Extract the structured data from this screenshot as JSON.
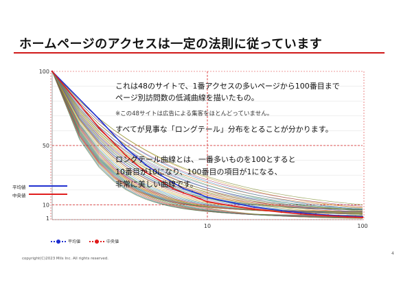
{
  "slide": {
    "title": "ホームページのアクセスは一定の法則に従っています",
    "notes": [
      "これは48のサイトで、1番アクセスの多いページから100番目まで",
      "ページ別訪問数の低減曲線を描いたもの。",
      "※この48サイトは広告による集客をほとんどっていません。",
      "すべてが見事な「ロングテール」分布をとることが分かります。",
      "ロングテール曲線とは、一番多いものを100とすると",
      "10番目が10になり、100番目の項目が1になる、",
      "非常に美しい曲線です。"
    ],
    "footer": "copyright(C)2023 Mils Inc. All rights reserved.",
    "page_number": "4"
  },
  "chart_data": {
    "type": "line",
    "x_tick_labels": [
      "10",
      "100"
    ],
    "y_tick_labels": [
      "100",
      "50",
      "10",
      "1"
    ],
    "xlim": [
      1,
      100
    ],
    "ylim": [
      0,
      100
    ],
    "reference_lines": {
      "x": [
        10
      ],
      "y": [
        50,
        10
      ]
    },
    "side_labels": [
      "平均値",
      "中央値"
    ],
    "legend": [
      {
        "name": "平均値",
        "color": "#1f2fd0"
      },
      {
        "name": "中央値",
        "color": "#e01c1c"
      }
    ],
    "series": [
      {
        "name": "平均値",
        "color": "#1f2fd0",
        "x": [
          1,
          2,
          3,
          4,
          5,
          6,
          7,
          8,
          9,
          10,
          15,
          20,
          30,
          40,
          50,
          60,
          70,
          80,
          90,
          100
        ],
        "y": [
          100,
          68,
          48,
          37,
          30,
          25,
          21,
          19,
          17,
          15,
          11,
          8.5,
          6,
          4.6,
          3.7,
          3.1,
          2.7,
          2.4,
          2.1,
          1.9
        ]
      },
      {
        "name": "中央値",
        "color": "#e01c1c",
        "x": [
          1,
          2,
          3,
          4,
          5,
          6,
          7,
          8,
          9,
          10,
          15,
          20,
          30,
          40,
          50,
          60,
          70,
          80,
          90,
          100
        ],
        "y": [
          100,
          62,
          43,
          32,
          26,
          21,
          18,
          16,
          14,
          12,
          9,
          7,
          5,
          3.8,
          3.1,
          2.6,
          2.2,
          1.9,
          1.7,
          1.5
        ]
      }
    ],
    "site_curve_count": 48
  }
}
